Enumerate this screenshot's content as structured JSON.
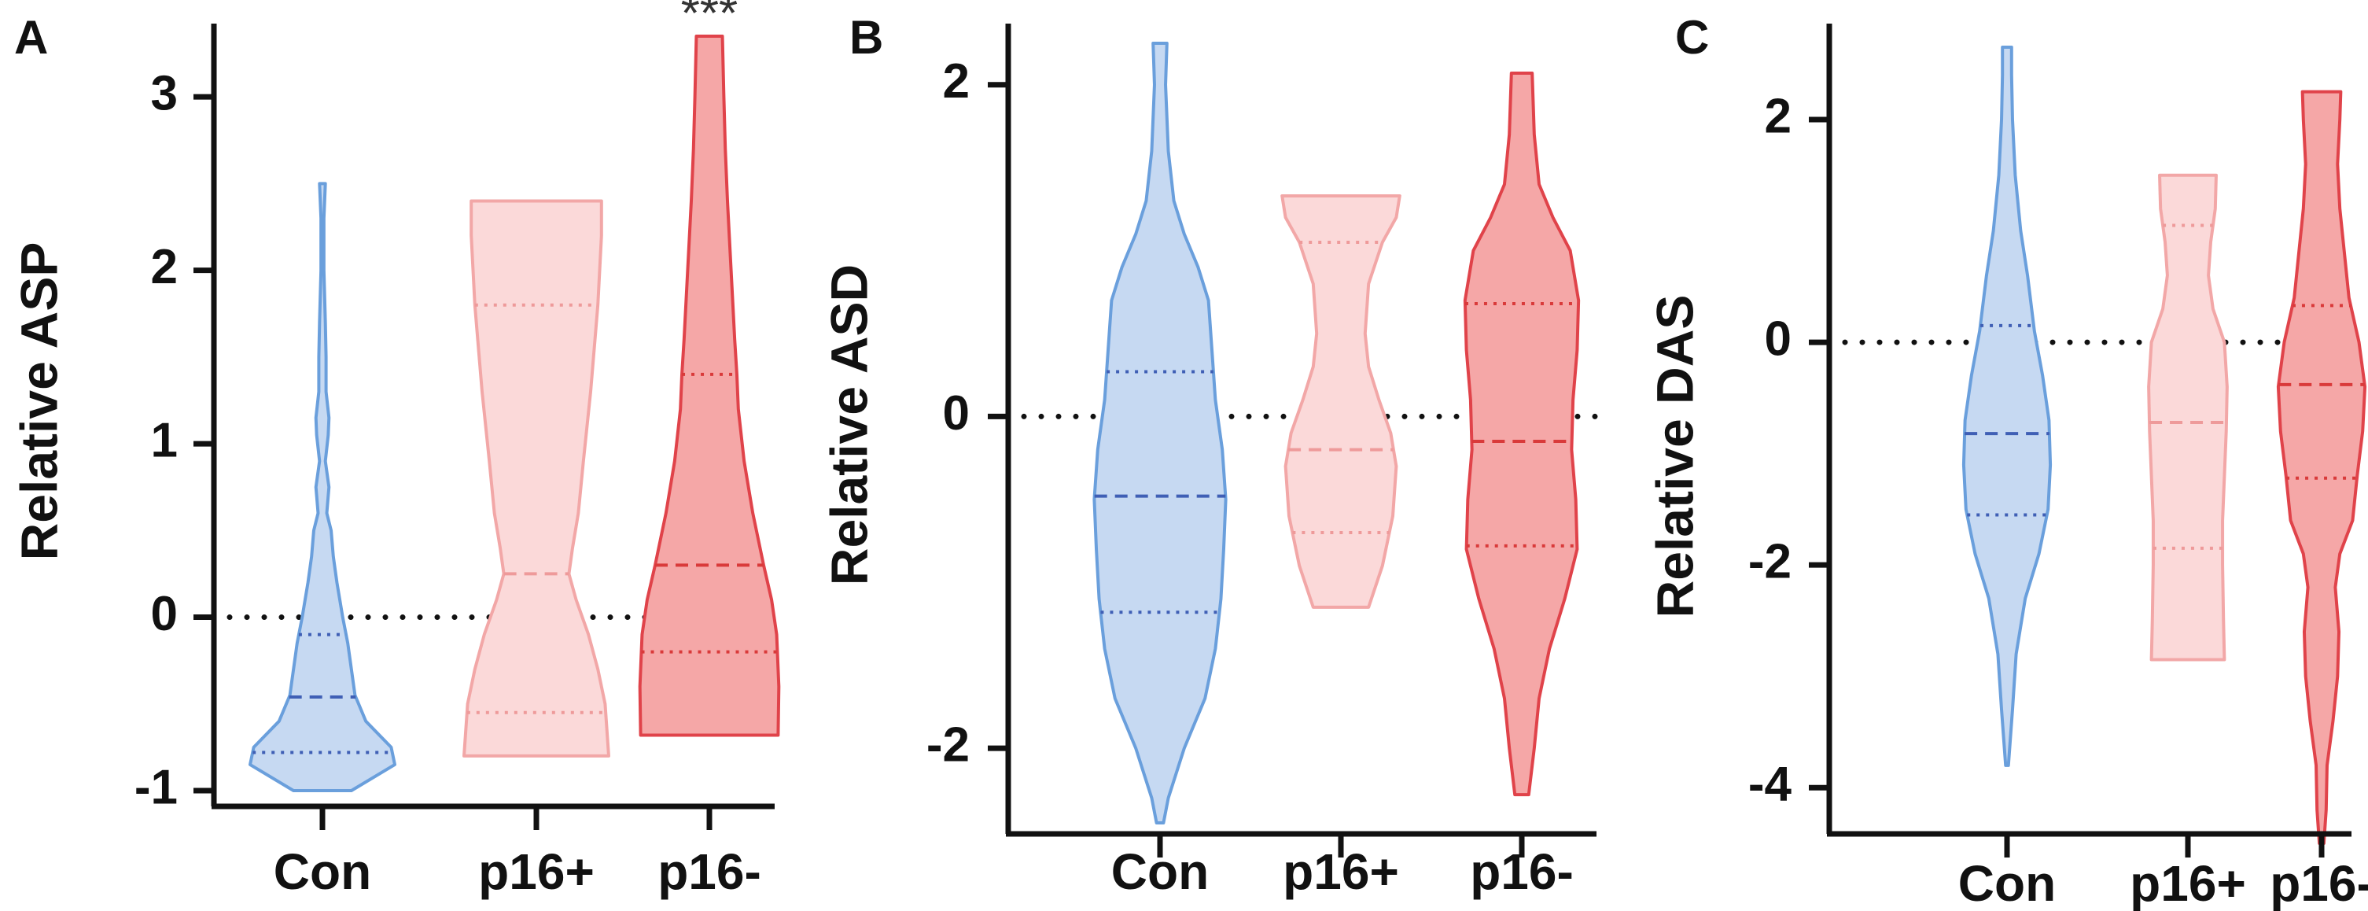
{
  "chart_data": [
    {
      "type": "violin",
      "panel": "A",
      "ylabel": "Relative ASP",
      "ylim": [
        -1.0,
        3.4
      ],
      "yticks": [
        -1,
        0,
        1,
        2,
        3
      ],
      "categories": [
        "Con",
        "p16+",
        "p16-"
      ],
      "reference_line": 0,
      "annotations": [
        {
          "category": "p16-",
          "text": "***"
        }
      ],
      "colors": {
        "Con": {
          "fill": "#c6d9f2",
          "stroke": "#6a9fdc",
          "median": "#3f5fb5"
        },
        "p16+": {
          "fill": "#fbd9d9",
          "stroke": "#f2a7a7",
          "median": "#ee9a9a"
        },
        "p16-": {
          "fill": "#f5a7a7",
          "stroke": "#e0434a",
          "median": "#d93a3a"
        }
      },
      "series": [
        {
          "name": "Con",
          "min": -1.0,
          "max": 2.5,
          "q1": -0.78,
          "median": -0.46,
          "q3": -0.1,
          "profile": [
            [
              -1.0,
              0.4
            ],
            [
              -0.85,
              1.0
            ],
            [
              -0.75,
              0.95
            ],
            [
              -0.6,
              0.6
            ],
            [
              -0.45,
              0.45
            ],
            [
              -0.3,
              0.4
            ],
            [
              -0.15,
              0.35
            ],
            [
              0.0,
              0.28
            ],
            [
              0.2,
              0.2
            ],
            [
              0.35,
              0.15
            ],
            [
              0.5,
              0.12
            ],
            [
              0.6,
              0.06
            ],
            [
              0.75,
              0.09
            ],
            [
              0.9,
              0.04
            ],
            [
              1.05,
              0.08
            ],
            [
              1.15,
              0.09
            ],
            [
              1.3,
              0.05
            ],
            [
              1.5,
              0.05
            ],
            [
              1.7,
              0.04
            ],
            [
              2.0,
              0.02
            ],
            [
              2.3,
              0.02
            ],
            [
              2.5,
              0.04
            ]
          ]
        },
        {
          "name": "p16+",
          "min": -0.8,
          "max": 2.4,
          "q1": -0.55,
          "median": 0.25,
          "q3": 1.8,
          "profile": [
            [
              -0.8,
              1.0
            ],
            [
              -0.5,
              0.95
            ],
            [
              -0.3,
              0.85
            ],
            [
              -0.1,
              0.72
            ],
            [
              0.1,
              0.55
            ],
            [
              0.25,
              0.45
            ],
            [
              0.4,
              0.5
            ],
            [
              0.6,
              0.58
            ],
            [
              0.9,
              0.65
            ],
            [
              1.3,
              0.75
            ],
            [
              1.8,
              0.85
            ],
            [
              2.2,
              0.9
            ],
            [
              2.4,
              0.9
            ]
          ]
        },
        {
          "name": "p16-",
          "min": -0.68,
          "max": 3.35,
          "q1": -0.2,
          "median": 0.3,
          "q3": 1.4,
          "profile": [
            [
              -0.68,
              0.95
            ],
            [
              -0.4,
              0.96
            ],
            [
              -0.1,
              0.93
            ],
            [
              0.1,
              0.86
            ],
            [
              0.3,
              0.75
            ],
            [
              0.6,
              0.6
            ],
            [
              0.9,
              0.48
            ],
            [
              1.2,
              0.4
            ],
            [
              1.4,
              0.38
            ],
            [
              1.6,
              0.35
            ],
            [
              2.0,
              0.3
            ],
            [
              2.4,
              0.25
            ],
            [
              2.7,
              0.22
            ],
            [
              3.0,
              0.2
            ],
            [
              3.35,
              0.18
            ]
          ]
        }
      ]
    },
    {
      "type": "violin",
      "panel": "B",
      "ylabel": "Relative ASD",
      "ylim": [
        -2.45,
        2.25
      ],
      "yticks": [
        -2,
        0,
        2
      ],
      "categories": [
        "Con",
        "p16+",
        "p16-"
      ],
      "reference_line": 0,
      "annotations": [],
      "colors": {
        "Con": {
          "fill": "#c6d9f2",
          "stroke": "#6a9fdc",
          "median": "#3f5fb5"
        },
        "p16+": {
          "fill": "#fbd9d9",
          "stroke": "#f2a7a7",
          "median": "#ee9a9a"
        },
        "p16-": {
          "fill": "#f5a7a7",
          "stroke": "#e0434a",
          "median": "#d93a3a"
        }
      },
      "series": [
        {
          "name": "Con",
          "min": -2.45,
          "max": 2.25,
          "q1": -1.18,
          "median": -0.48,
          "q3": 0.27,
          "profile": [
            [
              -2.45,
              0.05
            ],
            [
              -2.3,
              0.12
            ],
            [
              -2.0,
              0.35
            ],
            [
              -1.7,
              0.65
            ],
            [
              -1.4,
              0.8
            ],
            [
              -1.1,
              0.88
            ],
            [
              -0.8,
              0.92
            ],
            [
              -0.5,
              0.95
            ],
            [
              -0.2,
              0.9
            ],
            [
              0.1,
              0.8
            ],
            [
              0.4,
              0.75
            ],
            [
              0.7,
              0.7
            ],
            [
              0.9,
              0.55
            ],
            [
              1.1,
              0.35
            ],
            [
              1.3,
              0.2
            ],
            [
              1.6,
              0.12
            ],
            [
              2.0,
              0.08
            ],
            [
              2.25,
              0.1
            ]
          ]
        },
        {
          "name": "p16+",
          "min": -1.15,
          "max": 1.33,
          "q1": -0.7,
          "median": -0.2,
          "q3": 1.05,
          "profile": [
            [
              -1.15,
              0.4
            ],
            [
              -0.9,
              0.6
            ],
            [
              -0.6,
              0.75
            ],
            [
              -0.3,
              0.8
            ],
            [
              -0.1,
              0.72
            ],
            [
              0.1,
              0.55
            ],
            [
              0.3,
              0.4
            ],
            [
              0.5,
              0.35
            ],
            [
              0.8,
              0.4
            ],
            [
              1.05,
              0.6
            ],
            [
              1.2,
              0.8
            ],
            [
              1.33,
              0.85
            ]
          ]
        },
        {
          "name": "p16-",
          "min": -2.28,
          "max": 2.07,
          "q1": -0.78,
          "median": -0.15,
          "q3": 0.68,
          "profile": [
            [
              -2.28,
              0.1
            ],
            [
              -2.0,
              0.18
            ],
            [
              -1.7,
              0.25
            ],
            [
              -1.4,
              0.4
            ],
            [
              -1.1,
              0.62
            ],
            [
              -0.8,
              0.8
            ],
            [
              -0.5,
              0.78
            ],
            [
              -0.2,
              0.72
            ],
            [
              0.1,
              0.74
            ],
            [
              0.4,
              0.8
            ],
            [
              0.7,
              0.82
            ],
            [
              1.0,
              0.7
            ],
            [
              1.2,
              0.45
            ],
            [
              1.4,
              0.25
            ],
            [
              1.7,
              0.18
            ],
            [
              2.07,
              0.15
            ]
          ]
        }
      ]
    },
    {
      "type": "violin",
      "panel": "C",
      "ylabel": "Relative DAS",
      "ylim": [
        -4.5,
        2.65
      ],
      "yticks": [
        -4,
        -2,
        0,
        2
      ],
      "categories": [
        "Con",
        "p16+",
        "p16-"
      ],
      "reference_line": 0,
      "annotations": [],
      "colors": {
        "Con": {
          "fill": "#c6d9f2",
          "stroke": "#6a9fdc",
          "median": "#3f5fb5"
        },
        "p16+": {
          "fill": "#fbd9d9",
          "stroke": "#f2a7a7",
          "median": "#ee9a9a"
        },
        "p16-": {
          "fill": "#f5a7a7",
          "stroke": "#e0434a",
          "median": "#d93a3a"
        }
      },
      "series": [
        {
          "name": "Con",
          "min": -3.8,
          "max": 2.65,
          "q1": -1.55,
          "median": -0.82,
          "q3": 0.15,
          "profile": [
            [
              -3.8,
              0.03
            ],
            [
              -3.3,
              0.12
            ],
            [
              -2.8,
              0.2
            ],
            [
              -2.3,
              0.4
            ],
            [
              -1.9,
              0.7
            ],
            [
              -1.5,
              0.9
            ],
            [
              -1.1,
              0.95
            ],
            [
              -0.7,
              0.92
            ],
            [
              -0.3,
              0.78
            ],
            [
              0.1,
              0.6
            ],
            [
              0.6,
              0.45
            ],
            [
              1.0,
              0.3
            ],
            [
              1.5,
              0.18
            ],
            [
              2.0,
              0.12
            ],
            [
              2.4,
              0.1
            ],
            [
              2.65,
              0.1
            ]
          ]
        },
        {
          "name": "p16+",
          "min": -2.85,
          "max": 1.5,
          "q1": -1.85,
          "median": -0.72,
          "q3": 1.05,
          "profile": [
            [
              -2.85,
              0.8
            ],
            [
              -2.5,
              0.78
            ],
            [
              -2.0,
              0.76
            ],
            [
              -1.6,
              0.76
            ],
            [
              -1.2,
              0.8
            ],
            [
              -0.8,
              0.84
            ],
            [
              -0.4,
              0.86
            ],
            [
              0.0,
              0.8
            ],
            [
              0.3,
              0.55
            ],
            [
              0.6,
              0.45
            ],
            [
              0.9,
              0.5
            ],
            [
              1.2,
              0.6
            ],
            [
              1.5,
              0.62
            ]
          ]
        },
        {
          "name": "p16-",
          "min": -4.5,
          "max": 2.25,
          "q1": -1.22,
          "median": -0.38,
          "q3": 0.33,
          "profile": [
            [
              -4.5,
              0.05
            ],
            [
              -4.2,
              0.1
            ],
            [
              -3.8,
              0.12
            ],
            [
              -3.4,
              0.25
            ],
            [
              -3.0,
              0.35
            ],
            [
              -2.6,
              0.38
            ],
            [
              -2.2,
              0.3
            ],
            [
              -1.9,
              0.4
            ],
            [
              -1.6,
              0.68
            ],
            [
              -1.2,
              0.78
            ],
            [
              -0.8,
              0.9
            ],
            [
              -0.4,
              0.95
            ],
            [
              0.0,
              0.82
            ],
            [
              0.4,
              0.6
            ],
            [
              0.8,
              0.5
            ],
            [
              1.2,
              0.4
            ],
            [
              1.6,
              0.35
            ],
            [
              2.0,
              0.4
            ],
            [
              2.25,
              0.42
            ]
          ]
        }
      ]
    }
  ]
}
